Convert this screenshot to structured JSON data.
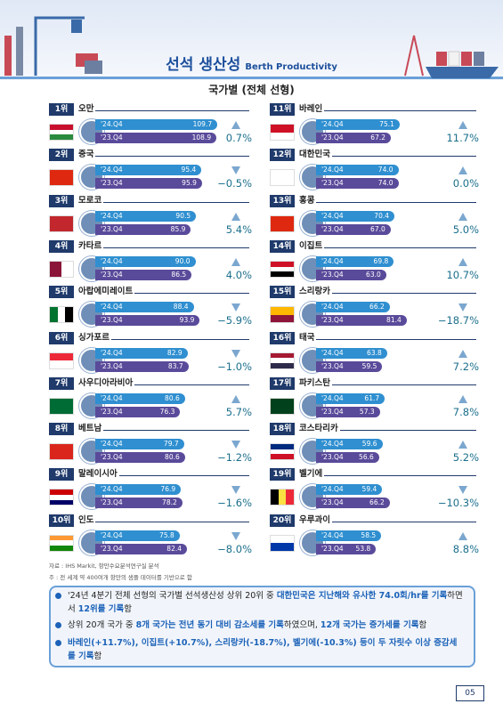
{
  "header": {
    "title": "선석 생산성",
    "subtitle_en": "Berth Productivity",
    "section": "국가별 (전체 선형)"
  },
  "period_labels": [
    "'24.Q4",
    "'23.Q4"
  ],
  "countries": [
    {
      "rank": "1위",
      "name": "오만",
      "q24": "109.7",
      "q23": "108.9",
      "change": "0.7%",
      "trend": "up"
    },
    {
      "rank": "2위",
      "name": "중국",
      "q24": "95.4",
      "q23": "95.9",
      "change": "−0.5%",
      "trend": "down"
    },
    {
      "rank": "3위",
      "name": "모로코",
      "q24": "90.5",
      "q23": "85.9",
      "change": "5.4%",
      "trend": "up"
    },
    {
      "rank": "4위",
      "name": "카타르",
      "q24": "90.0",
      "q23": "86.5",
      "change": "4.0%",
      "trend": "up"
    },
    {
      "rank": "5위",
      "name": "아랍에미레이트",
      "q24": "88.4",
      "q23": "93.9",
      "change": "−5.9%",
      "trend": "down"
    },
    {
      "rank": "6위",
      "name": "싱가포르",
      "q24": "82.9",
      "q23": "83.7",
      "change": "−1.0%",
      "trend": "down"
    },
    {
      "rank": "7위",
      "name": "사우디아라비아",
      "q24": "80.6",
      "q23": "76.3",
      "change": "5.7%",
      "trend": "up"
    },
    {
      "rank": "8위",
      "name": "베트남",
      "q24": "79.7",
      "q23": "80.6",
      "change": "−1.2%",
      "trend": "down"
    },
    {
      "rank": "9위",
      "name": "말레이시아",
      "q24": "76.9",
      "q23": "78.2",
      "change": "−1.6%",
      "trend": "down"
    },
    {
      "rank": "10위",
      "name": "인도",
      "q24": "75.8",
      "q23": "82.4",
      "change": "−8.0%",
      "trend": "down"
    },
    {
      "rank": "11위",
      "name": "바레인",
      "q24": "75.1",
      "q23": "67.2",
      "change": "11.7%",
      "trend": "up"
    },
    {
      "rank": "12위",
      "name": "대한민국",
      "q24": "74.0",
      "q23": "74.0",
      "change": "0.0%",
      "trend": "up"
    },
    {
      "rank": "13위",
      "name": "홍콩",
      "q24": "70.4",
      "q23": "67.0",
      "change": "5.0%",
      "trend": "up"
    },
    {
      "rank": "14위",
      "name": "이집트",
      "q24": "69.8",
      "q23": "63.0",
      "change": "10.7%",
      "trend": "up"
    },
    {
      "rank": "15위",
      "name": "스리랑카",
      "q24": "66.2",
      "q23": "81.4",
      "change": "−18.7%",
      "trend": "down"
    },
    {
      "rank": "16위",
      "name": "태국",
      "q24": "63.8",
      "q23": "59.5",
      "change": "7.2%",
      "trend": "up"
    },
    {
      "rank": "17위",
      "name": "파키스탄",
      "q24": "61.7",
      "q23": "57.3",
      "change": "7.8%",
      "trend": "up"
    },
    {
      "rank": "18위",
      "name": "코스타리카",
      "q24": "59.6",
      "q23": "56.6",
      "change": "5.2%",
      "trend": "up"
    },
    {
      "rank": "19위",
      "name": "벨기에",
      "q24": "59.4",
      "q23": "66.2",
      "change": "−10.3%",
      "trend": "down"
    },
    {
      "rank": "20위",
      "name": "우루과이",
      "q24": "58.5",
      "q23": "53.8",
      "change": "8.8%",
      "trend": "up"
    }
  ],
  "notes": [
    "자료 : IHS Markit, 항만수요분석연구실 분석",
    "주    : 전 세계 약 400여개 항만의 샘플 데이터를 기반으로 함"
  ],
  "summary": [
    [
      {
        "text": "'24년 4분기 전체 선형의 국가별 선석생산성 상위 20위 중 "
      },
      {
        "text": "대한민국은 지난해와 유사한 74.0회/hr를 기록",
        "em": true
      },
      {
        "text": "하면서 "
      },
      {
        "text": "12위를 기록",
        "em": true
      },
      {
        "text": "함"
      }
    ],
    [
      {
        "text": "상위 20개 국가 중 "
      },
      {
        "text": "8개 국가는 전년 동기 대비 감소세를 기록",
        "em": true
      },
      {
        "text": "하였으며, "
      },
      {
        "text": "12개 국가는 증가세를 기록",
        "em": true
      },
      {
        "text": "함"
      }
    ],
    [
      {
        "text": "바레인(+11.7%), 이집트(+10.7%), 스리랑카(-18.7%), 벨기에(-10.3%) 등이 두 자릿수 이상 증감세를 기록",
        "em": true
      },
      {
        "text": "함"
      }
    ]
  ],
  "footer": {
    "page": "05"
  }
}
